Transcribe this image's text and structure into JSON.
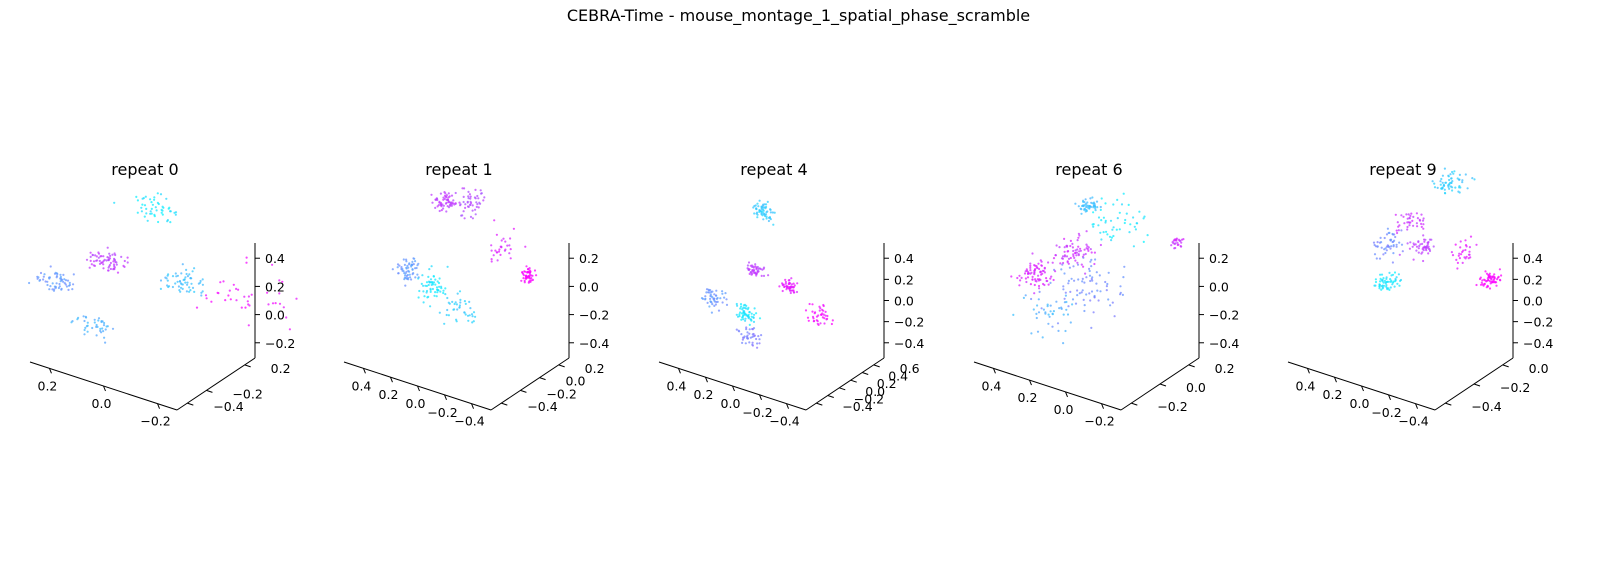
{
  "figure": {
    "title": "CEBRA-Time - mouse_montage_1_spatial_phase_scramble"
  },
  "chart_data": [
    {
      "type": "scatter",
      "title": "repeat 0",
      "x_ticks": [
        "−0.2",
        "0.0",
        "0.2"
      ],
      "y_ticks": [
        "−0.4",
        "−0.2",
        "0.2"
      ],
      "z_ticks": [
        "−0.2",
        "0.0",
        "0.2",
        "0.4"
      ],
      "colormap": "cool",
      "clusters": [
        {
          "x": -0.15,
          "y": -0.1,
          "z": 0.05,
          "spread": 0.05,
          "n": 60,
          "c": 0.25
        },
        {
          "x": 0.05,
          "y": 0.15,
          "z": 0.35,
          "spread": 0.06,
          "n": 50,
          "c": 0.1
        },
        {
          "x": 0.15,
          "y": -0.05,
          "z": 0.0,
          "spread": 0.05,
          "n": 70,
          "c": 0.75
        },
        {
          "x": 0.25,
          "y": -0.3,
          "z": -0.1,
          "spread": 0.05,
          "n": 60,
          "c": 0.4
        },
        {
          "x": -0.3,
          "y": 0.1,
          "z": -0.05,
          "spread": 0.12,
          "n": 40,
          "c": 0.95
        },
        {
          "x": 0.1,
          "y": -0.35,
          "z": -0.3,
          "spread": 0.05,
          "n": 40,
          "c": 0.3
        }
      ]
    },
    {
      "type": "scatter",
      "title": "repeat 1",
      "x_ticks": [
        "−0.4",
        "−0.2",
        "0.0",
        "0.2",
        "0.4"
      ],
      "y_ticks": [
        "−0.4",
        "−0.2",
        "0.0",
        "0.2"
      ],
      "z_ticks": [
        "−0.4",
        "−0.2",
        "0.0",
        "0.2"
      ],
      "colormap": "cool",
      "clusters": [
        {
          "x": -0.45,
          "y": 0.0,
          "z": -0.1,
          "spread": 0.03,
          "n": 50,
          "c": 1.0
        },
        {
          "x": -0.2,
          "y": 0.1,
          "z": 0.0,
          "spread": 0.08,
          "n": 30,
          "c": 0.85
        },
        {
          "x": 0.1,
          "y": 0.2,
          "z": 0.15,
          "spread": 0.06,
          "n": 50,
          "c": 0.7
        },
        {
          "x": 0.3,
          "y": 0.2,
          "z": 0.1,
          "spread": 0.05,
          "n": 60,
          "c": 0.75
        },
        {
          "x": 0.1,
          "y": -0.2,
          "z": -0.25,
          "spread": 0.06,
          "n": 60,
          "c": 0.1
        },
        {
          "x": 0.35,
          "y": -0.1,
          "z": -0.25,
          "spread": 0.06,
          "n": 60,
          "c": 0.4
        },
        {
          "x": -0.1,
          "y": -0.2,
          "z": -0.35,
          "spread": 0.07,
          "n": 40,
          "c": 0.2
        }
      ]
    },
    {
      "type": "scatter",
      "title": "repeat 4",
      "x_ticks": [
        "−0.4",
        "−0.2",
        "0.0",
        "0.2",
        "0.4"
      ],
      "y_ticks": [
        "−0.4",
        "−0.2",
        "0.0",
        "0.2",
        "0.4",
        "0.6"
      ],
      "z_ticks": [
        "−0.4",
        "−0.2",
        "0.0",
        "0.2",
        "0.4"
      ],
      "colormap": "cool",
      "clusters": [
        {
          "x": -0.4,
          "y": 0.0,
          "z": -0.3,
          "spread": 0.06,
          "n": 40,
          "c": 0.95
        },
        {
          "x": -0.15,
          "y": 0.05,
          "z": -0.15,
          "spread": 0.04,
          "n": 50,
          "c": 0.9
        },
        {
          "x": 0.1,
          "y": 0.05,
          "z": -0.1,
          "spread": 0.04,
          "n": 50,
          "c": 0.75
        },
        {
          "x": 0.15,
          "y": 0.3,
          "z": 0.35,
          "spread": 0.06,
          "n": 60,
          "c": 0.2
        },
        {
          "x": 0.05,
          "y": -0.2,
          "z": -0.4,
          "spread": 0.05,
          "n": 60,
          "c": 0.1
        },
        {
          "x": 0.3,
          "y": -0.2,
          "z": -0.35,
          "spread": 0.06,
          "n": 50,
          "c": 0.4
        },
        {
          "x": 0.0,
          "y": -0.3,
          "z": -0.55,
          "spread": 0.06,
          "n": 40,
          "c": 0.5
        }
      ]
    },
    {
      "type": "scatter",
      "title": "repeat 6",
      "x_ticks": [
        "−0.2",
        "0.0",
        "0.2",
        "0.4"
      ],
      "y_ticks": [
        "−0.2",
        "0.0",
        "0.2"
      ],
      "z_ticks": [
        "−0.4",
        "−0.2",
        "0.0",
        "0.2"
      ],
      "colormap": "cool",
      "clusters": [
        {
          "x": -0.25,
          "y": 0.2,
          "z": 0.05,
          "spread": 0.02,
          "n": 25,
          "c": 0.8
        },
        {
          "x": 0.0,
          "y": 0.1,
          "z": 0.15,
          "spread": 0.1,
          "n": 50,
          "c": 0.1
        },
        {
          "x": 0.25,
          "y": 0.2,
          "z": 0.1,
          "spread": 0.03,
          "n": 50,
          "c": 0.25
        },
        {
          "x": 0.15,
          "y": 0.0,
          "z": -0.05,
          "spread": 0.06,
          "n": 70,
          "c": 0.8
        },
        {
          "x": 0.3,
          "y": -0.1,
          "z": -0.2,
          "spread": 0.06,
          "n": 80,
          "c": 0.85
        },
        {
          "x": 0.0,
          "y": -0.15,
          "z": -0.15,
          "spread": 0.12,
          "n": 80,
          "c": 0.45
        },
        {
          "x": 0.1,
          "y": -0.25,
          "z": -0.3,
          "spread": 0.1,
          "n": 40,
          "c": 0.3
        }
      ]
    },
    {
      "type": "scatter",
      "title": "repeat 9",
      "x_ticks": [
        "−0.4",
        "−0.2",
        "0.0",
        "0.2",
        "0.4"
      ],
      "y_ticks": [
        "−0.4",
        "−0.2",
        "0.0"
      ],
      "z_ticks": [
        "−0.4",
        "−0.2",
        "0.0",
        "0.2",
        "0.4"
      ],
      "colormap": "cool",
      "clusters": [
        {
          "x": -0.45,
          "y": 0.0,
          "z": -0.15,
          "spread": 0.04,
          "n": 60,
          "c": 1.0
        },
        {
          "x": -0.2,
          "y": 0.05,
          "z": -0.05,
          "spread": 0.06,
          "n": 30,
          "c": 0.9
        },
        {
          "x": 0.05,
          "y": 0.0,
          "z": -0.05,
          "spread": 0.05,
          "n": 50,
          "c": 0.75
        },
        {
          "x": 0.25,
          "y": 0.1,
          "z": 0.0,
          "spread": 0.05,
          "n": 40,
          "c": 0.8
        },
        {
          "x": 0.1,
          "y": 0.25,
          "z": 0.3,
          "spread": 0.06,
          "n": 60,
          "c": 0.2
        },
        {
          "x": 0.15,
          "y": -0.15,
          "z": -0.3,
          "spread": 0.04,
          "n": 60,
          "c": 0.1
        },
        {
          "x": 0.35,
          "y": 0.05,
          "z": -0.2,
          "spread": 0.06,
          "n": 50,
          "c": 0.45
        }
      ]
    }
  ]
}
